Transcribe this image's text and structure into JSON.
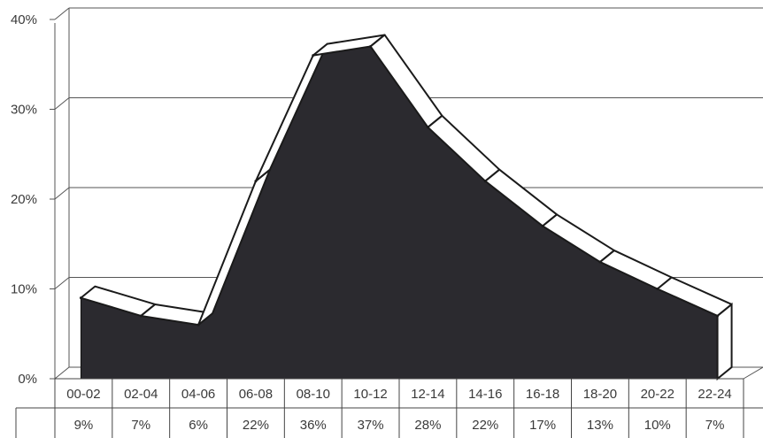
{
  "chart_data": {
    "type": "area",
    "categories": [
      "00-02",
      "02-04",
      "04-06",
      "06-08",
      "08-10",
      "10-12",
      "12-14",
      "14-16",
      "16-18",
      "18-20",
      "20-22",
      "22-24"
    ],
    "series": [
      {
        "values": [
          9,
          7,
          6,
          22,
          36,
          37,
          28,
          22,
          17,
          13,
          10,
          7
        ]
      }
    ],
    "value_labels": [
      "9%",
      "7%",
      "6%",
      "22%",
      "36%",
      "37%",
      "28%",
      "22%",
      "17%",
      "13%",
      "10%",
      "7%"
    ],
    "y_ticks": [
      0,
      10,
      20,
      30,
      40
    ],
    "y_tick_labels": [
      "0%",
      "10%",
      "20%",
      "30%",
      "40%"
    ],
    "ylim": [
      0,
      40
    ],
    "grid": true,
    "style": "3d",
    "colors": {
      "area": "#2b2a2f",
      "grid": "#555555",
      "background": "#ffffff"
    }
  }
}
